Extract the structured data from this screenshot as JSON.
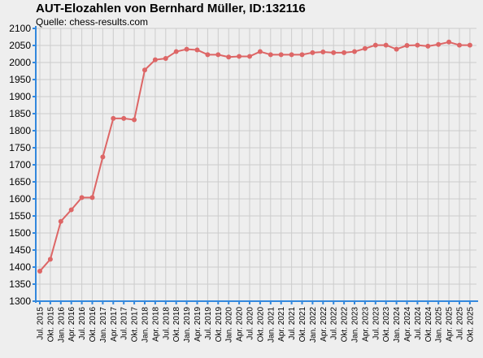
{
  "chart_data": {
    "type": "line",
    "title": "AUT-Elozahlen von Bernhard Müller, ID:132116",
    "subtitle": "Quelle: chess-results.com",
    "xlabel": "",
    "ylabel": "",
    "ylim": [
      1300,
      2100
    ],
    "ytick_step": 50,
    "grid": true,
    "line_color": "#dd6666",
    "axis_color": "#3388dd",
    "grid_color": "#cccccc",
    "x": [
      "Jul. 2015",
      "Okt. 2015",
      "Jan. 2016",
      "Apr. 2016",
      "Jul. 2016",
      "Okt. 2016",
      "Jan. 2017",
      "Apr. 2017",
      "Jul. 2017",
      "Okt. 2017",
      "Jan. 2018",
      "Apr. 2018",
      "Jul. 2018",
      "Okt. 2018",
      "Jan. 2019",
      "Apr. 2019",
      "Jul. 2019",
      "Okt. 2019",
      "Jan. 2020",
      "Apr. 2020",
      "Jul. 2020",
      "Okt. 2020",
      "Jan. 2021",
      "Apr. 2021",
      "Jul. 2021",
      "Okt. 2021",
      "Jan. 2022",
      "Apr. 2022",
      "Jul. 2022",
      "Okt. 2022",
      "Jan. 2023",
      "Apr. 2023",
      "Jul. 2023",
      "Okt. 2023",
      "Jan. 2024",
      "Apr. 2024",
      "Jul. 2024",
      "Okt. 2024",
      "Jan. 2025",
      "Apr. 2025",
      "Jul. 2025",
      "Okt. 2025"
    ],
    "series": [
      {
        "values": [
          1388,
          1423,
          1534,
          1568,
          1604,
          1604,
          1723,
          1836,
          1836,
          1832,
          1978,
          2008,
          2012,
          2032,
          2039,
          2037,
          2023,
          2023,
          2016,
          2018,
          2018,
          2032,
          2023,
          2023,
          2023,
          2023,
          2029,
          2031,
          2029,
          2029,
          2032,
          2041,
          2051,
          2051,
          2039,
          2050,
          2051,
          2048,
          2053,
          2060,
          2051,
          2051
        ]
      }
    ]
  }
}
